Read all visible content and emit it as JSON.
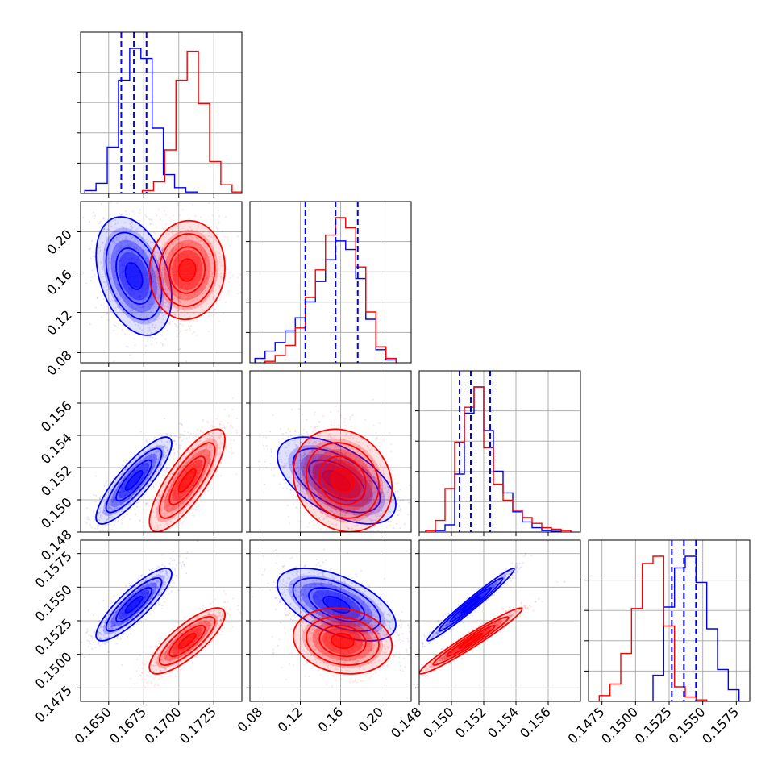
{
  "colors": {
    "series_a": "#0000ff",
    "series_b": "#ff0000",
    "quantile": "#0000ff",
    "grid": "#b0b0b0"
  },
  "chart_data": {
    "type": "corner",
    "grid": true,
    "parameters": [
      {
        "id": "p0",
        "range": [
          0.163,
          0.1745
        ],
        "ticks": [
          0.165,
          0.1675,
          0.17,
          0.1725
        ],
        "tick_labels": [
          "0.1650",
          "0.1675",
          "0.1700",
          "0.1725"
        ]
      },
      {
        "id": "p1",
        "range": [
          0.07,
          0.23
        ],
        "ticks": [
          0.08,
          0.12,
          0.16,
          0.2
        ],
        "tick_labels": [
          "0.08",
          "0.12",
          "0.16",
          "0.20"
        ]
      },
      {
        "id": "p2",
        "range": [
          0.148,
          0.158
        ],
        "ticks": [
          0.148,
          0.15,
          0.152,
          0.154,
          0.156
        ],
        "tick_labels": [
          "0.148",
          "0.150",
          "0.152",
          "0.154",
          "0.156"
        ]
      },
      {
        "id": "p3",
        "range": [
          0.1465,
          0.1585
        ],
        "ticks": [
          0.1475,
          0.15,
          0.1525,
          0.155,
          0.1575
        ],
        "tick_labels": [
          "0.1475",
          "0.1500",
          "0.1525",
          "0.1550",
          "0.1575"
        ]
      }
    ],
    "series": [
      {
        "color": "#0000ff",
        "means": [
          0.1668,
          0.156,
          0.1512,
          0.1537
        ],
        "sds": [
          0.0011,
          0.024,
          0.0011,
          0.0011
        ],
        "histograms": [
          {
            "bin_edges": [
              0.1633,
              0.1641,
              0.1649,
              0.1657,
              0.1665,
              0.1673,
              0.1681,
              0.1689,
              0.1697,
              0.1705,
              0.1713
            ],
            "counts": [
              0.02,
              0.07,
              0.32,
              0.78,
              1.0,
              0.93,
              0.45,
              0.13,
              0.04,
              0.01
            ]
          },
          {
            "bin_edges": [
              0.075,
              0.085,
              0.095,
              0.105,
              0.115,
              0.125,
              0.135,
              0.145,
              0.155,
              0.165,
              0.175,
              0.185,
              0.195,
              0.205,
              0.215
            ],
            "counts": [
              0.03,
              0.08,
              0.14,
              0.22,
              0.31,
              0.42,
              0.56,
              0.71,
              0.84,
              0.78,
              0.58,
              0.3,
              0.09,
              0.02
            ]
          },
          {
            "bin_edges": [
              0.149,
              0.1496,
              0.1502,
              0.1508,
              0.1514,
              0.152,
              0.1526,
              0.1532,
              0.1538,
              0.1544,
              0.155,
              0.1556,
              0.1562,
              0.1568
            ],
            "counts": [
              0.01,
              0.05,
              0.4,
              0.82,
              1.0,
              0.7,
              0.42,
              0.27,
              0.14,
              0.07,
              0.03,
              0.01,
              0.005
            ]
          },
          {
            "bin_edges": [
              0.1513,
              0.1521,
              0.1529,
              0.1537,
              0.1545,
              0.1553,
              0.1561,
              0.1569,
              0.1577
            ],
            "counts": [
              0.18,
              0.65,
              0.92,
              1.0,
              0.82,
              0.5,
              0.22,
              0.08
            ]
          }
        ]
      },
      {
        "color": "#ff0000",
        "means": [
          0.1706,
          0.162,
          0.1512,
          0.151
        ],
        "sds": [
          0.0011,
          0.02,
          0.0013,
          0.001
        ],
        "histograms": [
          {
            "bin_edges": [
              0.1674,
              0.1682,
              0.169,
              0.1698,
              0.1706,
              0.1714,
              0.1722,
              0.173,
              0.1738,
              0.1746
            ],
            "counts": [
              0.02,
              0.08,
              0.3,
              0.78,
              0.98,
              0.62,
              0.22,
              0.06,
              0.01
            ]
          },
          {
            "bin_edges": [
              0.085,
              0.095,
              0.105,
              0.115,
              0.125,
              0.135,
              0.145,
              0.155,
              0.165,
              0.175,
              0.185,
              0.195,
              0.205,
              0.215
            ],
            "counts": [
              0.01,
              0.05,
              0.12,
              0.24,
              0.45,
              0.64,
              0.88,
              1.0,
              0.93,
              0.66,
              0.35,
              0.11,
              0.03
            ]
          },
          {
            "bin_edges": [
              0.1484,
              0.149,
              0.1496,
              0.1502,
              0.1508,
              0.1514,
              0.152,
              0.1526,
              0.1532,
              0.1538,
              0.1544,
              0.155,
              0.1556,
              0.1562,
              0.1568,
              0.1574
            ],
            "counts": [
              0.01,
              0.08,
              0.3,
              0.62,
              0.86,
              1.0,
              0.58,
              0.33,
              0.22,
              0.15,
              0.1,
              0.06,
              0.03,
              0.02,
              0.01
            ]
          },
          {
            "bin_edges": [
              0.1473,
              0.1481,
              0.1489,
              0.1497,
              0.1505,
              0.1513,
              0.1521,
              0.1529,
              0.1537,
              0.1545,
              0.1553
            ],
            "counts": [
              0.04,
              0.12,
              0.33,
              0.64,
              0.95,
              1.0,
              0.52,
              0.1,
              0.03,
              0.01
            ]
          }
        ]
      }
    ],
    "correlations": {
      "series_a": {
        "0-1": -0.35,
        "0-2": 0.85,
        "0-3": 0.85,
        "1-2": -0.55,
        "1-3": -0.55,
        "2-3": 0.98
      },
      "series_b": {
        "0-1": 0.05,
        "0-2": 0.8,
        "0-3": 0.8,
        "1-2": -0.15,
        "1-3": -0.15,
        "2-3": 0.97
      }
    },
    "quantile_lines": [
      {
        "param": "p0",
        "values": [
          0.1659,
          0.1668,
          0.1677
        ]
      },
      {
        "param": "p1",
        "values": [
          0.125,
          0.155,
          0.177
        ]
      },
      {
        "param": "p2",
        "values": [
          0.1505,
          0.1512,
          0.1524
        ]
      },
      {
        "param": "p3",
        "values": [
          0.1527,
          0.1536,
          0.1545
        ]
      }
    ]
  }
}
